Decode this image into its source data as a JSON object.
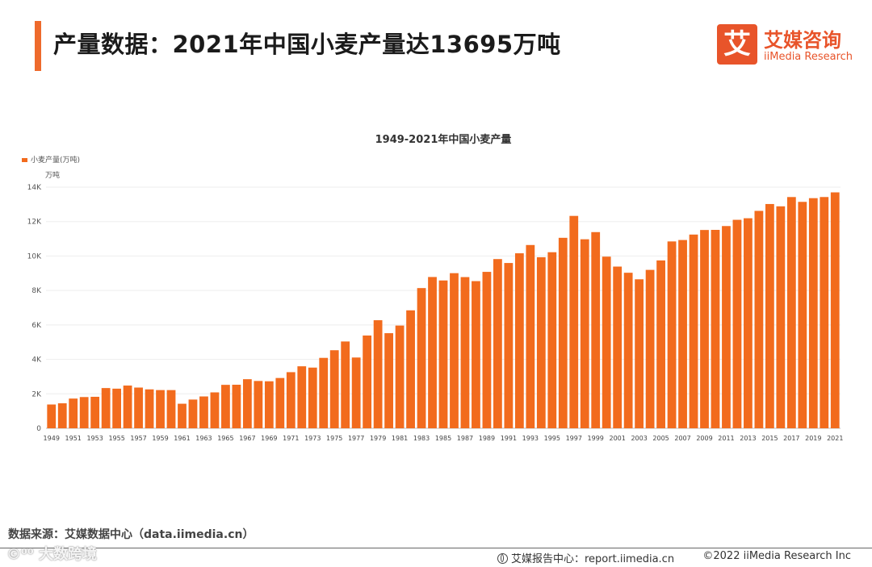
{
  "header": {
    "title": "产量数据：2021年中国小麦产量达13695万吨"
  },
  "logo": {
    "mark": "艾",
    "name_cn": "艾媒咨询",
    "name_en": "iiMedia Research",
    "color": "#e8542a"
  },
  "colors": {
    "accent": "#ee6a2c",
    "bar": "#f26b1d"
  },
  "chart_data": {
    "type": "bar",
    "title": "1949-2021年中国小麦产量",
    "legend": [
      "小麦产量(万吨)"
    ],
    "legend_position": "top-left",
    "ylabel": "万吨",
    "xlabel": "",
    "ylim": [
      0,
      14000
    ],
    "yticks": [
      0,
      2000,
      4000,
      6000,
      8000,
      10000,
      12000,
      14000
    ],
    "ytick_labels": [
      "0",
      "2K",
      "4K",
      "6K",
      "8K",
      "10K",
      "12K",
      "14K"
    ],
    "grid": true,
    "categories": [
      1949,
      1950,
      1951,
      1952,
      1953,
      1954,
      1955,
      1956,
      1957,
      1958,
      1959,
      1960,
      1961,
      1962,
      1963,
      1964,
      1965,
      1966,
      1967,
      1968,
      1969,
      1970,
      1971,
      1972,
      1973,
      1974,
      1975,
      1976,
      1977,
      1978,
      1979,
      1980,
      1981,
      1982,
      1983,
      1984,
      1985,
      1986,
      1987,
      1988,
      1989,
      1990,
      1991,
      1992,
      1993,
      1994,
      1995,
      1996,
      1997,
      1998,
      1999,
      2000,
      2001,
      2002,
      2003,
      2004,
      2005,
      2006,
      2007,
      2008,
      2009,
      2010,
      2011,
      2012,
      2013,
      2014,
      2015,
      2016,
      2017,
      2018,
      2019,
      2020,
      2021
    ],
    "values": [
      1381,
      1450,
      1725,
      1813,
      1828,
      2335,
      2300,
      2480,
      2364,
      2259,
      2218,
      2217,
      1425,
      1667,
      1848,
      2084,
      2522,
      2528,
      2849,
      2746,
      2729,
      2919,
      3258,
      3599,
      3523,
      4087,
      4531,
      5039,
      4108,
      5384,
      6273,
      5521,
      5964,
      6847,
      8139,
      8782,
      8581,
      9005,
      8777,
      8543,
      9081,
      9823,
      9595,
      10159,
      10639,
      9930,
      10221,
      11057,
      12329,
      10973,
      11388,
      9964,
      9387,
      9029,
      8649,
      9195,
      9745,
      10847,
      10930,
      11246,
      11512,
      11518,
      11740,
      12102,
      12193,
      12621,
      13019,
      12885,
      13424,
      13144,
      13359,
      13425,
      13695
    ],
    "xtick_labels": [
      "1949",
      "1951",
      "1953",
      "1955",
      "1957",
      "1959",
      "1961",
      "1963",
      "1965",
      "1967",
      "1969",
      "1971",
      "1973",
      "1975",
      "1977",
      "1979",
      "1981",
      "1983",
      "1985",
      "1987",
      "1989",
      "1991",
      "1993",
      "1995",
      "1997",
      "1999",
      "2001",
      "2003",
      "2005",
      "2007",
      "2009",
      "2011",
      "2013",
      "2015",
      "2017",
      "2019",
      "2021"
    ]
  },
  "footer": {
    "source": "数据来源：艾媒数据中心（data.iimedia.cn）",
    "report": "艾媒报告中心：report.iimedia.cn",
    "copyright": "©2022 iiMedia Research Inc",
    "watermark": "©⁰⁰ 大数跨境"
  }
}
